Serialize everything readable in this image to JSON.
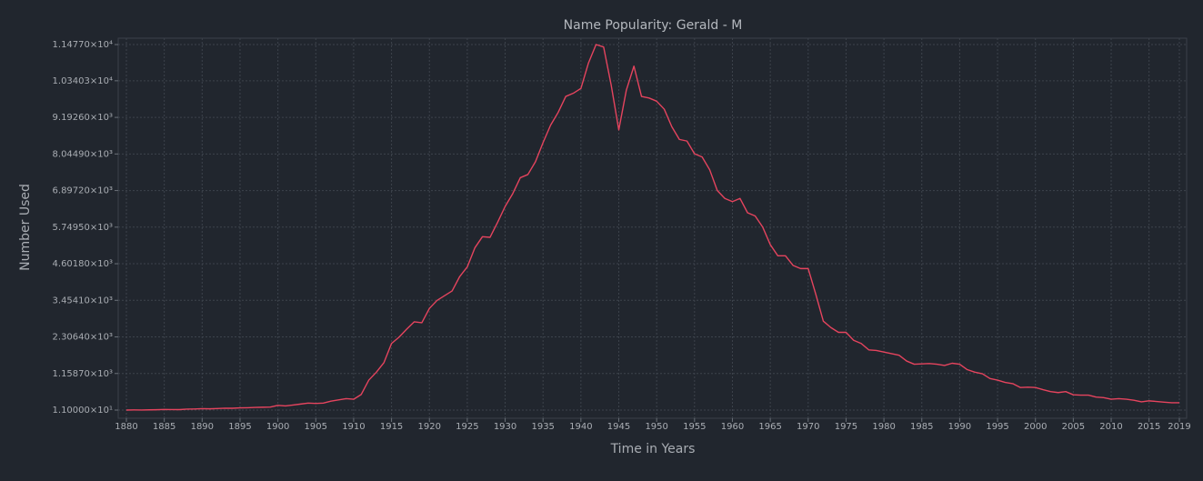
{
  "chart_data": {
    "type": "line",
    "title": "Name Popularity: Gerald - M",
    "x_label": "Time in Years",
    "y_label": "Number Used",
    "x": [
      1880,
      1881,
      1882,
      1883,
      1884,
      1885,
      1886,
      1887,
      1888,
      1889,
      1890,
      1891,
      1892,
      1893,
      1894,
      1895,
      1896,
      1897,
      1898,
      1899,
      1900,
      1901,
      1902,
      1903,
      1904,
      1905,
      1906,
      1907,
      1908,
      1909,
      1910,
      1911,
      1912,
      1913,
      1914,
      1915,
      1916,
      1917,
      1918,
      1919,
      1920,
      1921,
      1922,
      1923,
      1924,
      1925,
      1926,
      1927,
      1928,
      1929,
      1930,
      1931,
      1932,
      1933,
      1934,
      1935,
      1936,
      1937,
      1938,
      1939,
      1940,
      1941,
      1942,
      1943,
      1944,
      1945,
      1946,
      1947,
      1948,
      1949,
      1950,
      1951,
      1952,
      1953,
      1954,
      1955,
      1956,
      1957,
      1958,
      1959,
      1960,
      1961,
      1962,
      1963,
      1964,
      1965,
      1966,
      1967,
      1968,
      1969,
      1970,
      1971,
      1972,
      1973,
      1974,
      1975,
      1976,
      1977,
      1978,
      1979,
      1980,
      1981,
      1982,
      1983,
      1984,
      1985,
      1986,
      1987,
      1988,
      1989,
      1990,
      1991,
      1992,
      1993,
      1994,
      1995,
      1996,
      1997,
      1998,
      1999,
      2000,
      2001,
      2002,
      2003,
      2004,
      2005,
      2006,
      2007,
      2008,
      2009,
      2010,
      2011,
      2012,
      2013,
      2014,
      2015,
      2016,
      2017,
      2018,
      2019
    ],
    "series": [
      {
        "name": "Gerald",
        "color": "#e5445e",
        "values": [
          11,
          15,
          14,
          18,
          22,
          30,
          28,
          25,
          40,
          45,
          55,
          50,
          60,
          70,
          68,
          80,
          85,
          95,
          100,
          105,
          160,
          140,
          170,
          200,
          230,
          220,
          230,
          290,
          330,
          370,
          350,
          500,
          950,
          1200,
          1500,
          2100,
          2300,
          2550,
          2780,
          2750,
          3200,
          3450,
          3600,
          3750,
          4200,
          4500,
          5100,
          5450,
          5430,
          5900,
          6400,
          6800,
          7300,
          7400,
          7800,
          8400,
          8950,
          9350,
          9850,
          9950,
          10100,
          10900,
          11477,
          11400,
          10200,
          8800,
          10050,
          10800,
          9850,
          9800,
          9700,
          9450,
          8900,
          8500,
          8450,
          8050,
          7950,
          7550,
          6900,
          6650,
          6550,
          6650,
          6200,
          6100,
          5750,
          5200,
          4850,
          4850,
          4550,
          4450,
          4450,
          3650,
          2800,
          2600,
          2450,
          2450,
          2200,
          2100,
          1900,
          1880,
          1830,
          1780,
          1730,
          1550,
          1450,
          1460,
          1470,
          1450,
          1410,
          1480,
          1450,
          1280,
          1200,
          1150,
          1000,
          950,
          880,
          840,
          720,
          730,
          720,
          650,
          590,
          560,
          590,
          490,
          480,
          480,
          420,
          400,
          350,
          370,
          350,
          320,
          270,
          300,
          280,
          260,
          240,
          240
        ]
      }
    ],
    "xlim": [
      1880,
      2019
    ],
    "xticks": [
      1880,
      1885,
      1890,
      1895,
      1900,
      1905,
      1910,
      1915,
      1920,
      1925,
      1930,
      1935,
      1940,
      1945,
      1950,
      1955,
      1960,
      1965,
      1970,
      1975,
      1980,
      1985,
      1990,
      1995,
      2000,
      2005,
      2010,
      2015,
      2019
    ],
    "ylim": [
      11,
      11477
    ],
    "yticks": [
      {
        "value": 11,
        "label": "1.10000×10¹"
      },
      {
        "value": 1158.7,
        "label": "1.15870×10³"
      },
      {
        "value": 2306.4,
        "label": "2.30640×10³"
      },
      {
        "value": 3454.1,
        "label": "3.45410×10³"
      },
      {
        "value": 4601.8,
        "label": "4.60180×10³"
      },
      {
        "value": 5749.5,
        "label": "5.74950×10³"
      },
      {
        "value": 6897.2,
        "label": "6.89720×10³"
      },
      {
        "value": 8044.9,
        "label": "8.04490×10³"
      },
      {
        "value": 9192.6,
        "label": "9.19260×10³"
      },
      {
        "value": 10340.3,
        "label": "1.03403×10⁴"
      },
      {
        "value": 11477,
        "label": "1.14770×10⁴"
      }
    ],
    "grid": true
  }
}
